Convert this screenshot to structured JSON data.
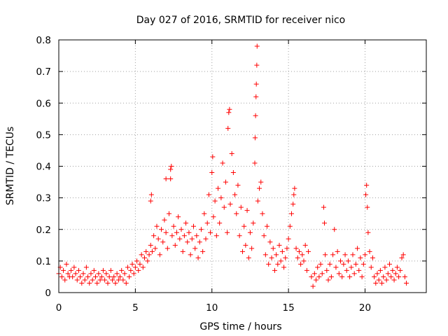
{
  "chart_data": {
    "type": "scatter",
    "title": "Day 027 of 2016, SRMTID for receiver nico",
    "xlabel": "GPS time / hours",
    "ylabel": "SRMTID / TECUs",
    "xlim": [
      0,
      24
    ],
    "ylim": [
      0,
      0.8
    ],
    "grid": true,
    "marker": "+",
    "color": "#ff0000",
    "xticks": [
      0,
      5,
      10,
      15,
      20
    ],
    "yticks": [
      0,
      0.1,
      0.2,
      0.3,
      0.4,
      0.5,
      0.6,
      0.7,
      0.8
    ],
    "xtick_labels": [
      "0",
      "5",
      "10",
      "15",
      "20"
    ],
    "ytick_labels": [
      "0",
      "0.1",
      "0.2",
      "0.3",
      "0.4",
      "0.5",
      "0.6",
      "0.7",
      "0.8"
    ],
    "series": [
      {
        "name": "SRMTID",
        "points": [
          [
            0.0,
            0.06
          ],
          [
            0.1,
            0.08
          ],
          [
            0.2,
            0.05
          ],
          [
            0.3,
            0.07
          ],
          [
            0.4,
            0.04
          ],
          [
            0.5,
            0.09
          ],
          [
            0.6,
            0.06
          ],
          [
            0.7,
            0.05
          ],
          [
            0.8,
            0.07
          ],
          [
            0.9,
            0.05
          ],
          [
            1.0,
            0.08
          ],
          [
            1.1,
            0.06
          ],
          [
            1.2,
            0.04
          ],
          [
            1.3,
            0.07
          ],
          [
            1.4,
            0.05
          ],
          [
            1.5,
            0.03
          ],
          [
            1.6,
            0.06
          ],
          [
            1.7,
            0.04
          ],
          [
            1.8,
            0.08
          ],
          [
            1.9,
            0.05
          ],
          [
            2.0,
            0.03
          ],
          [
            2.1,
            0.06
          ],
          [
            2.2,
            0.04
          ],
          [
            2.3,
            0.07
          ],
          [
            2.4,
            0.05
          ],
          [
            2.5,
            0.03
          ],
          [
            2.6,
            0.06
          ],
          [
            2.7,
            0.04
          ],
          [
            2.8,
            0.05
          ],
          [
            2.9,
            0.07
          ],
          [
            3.0,
            0.04
          ],
          [
            3.1,
            0.06
          ],
          [
            3.2,
            0.03
          ],
          [
            3.3,
            0.05
          ],
          [
            3.4,
            0.07
          ],
          [
            3.5,
            0.04
          ],
          [
            3.6,
            0.05
          ],
          [
            3.7,
            0.03
          ],
          [
            3.8,
            0.06
          ],
          [
            3.9,
            0.04
          ],
          [
            4.0,
            0.05
          ],
          [
            4.1,
            0.07
          ],
          [
            4.2,
            0.04
          ],
          [
            4.3,
            0.06
          ],
          [
            4.4,
            0.03
          ],
          [
            4.5,
            0.08
          ],
          [
            4.6,
            0.05
          ],
          [
            4.7,
            0.07
          ],
          [
            4.8,
            0.09
          ],
          [
            4.9,
            0.06
          ],
          [
            5.0,
            0.08
          ],
          [
            5.1,
            0.1
          ],
          [
            5.2,
            0.07
          ],
          [
            5.3,
            0.09
          ],
          [
            5.4,
            0.12
          ],
          [
            5.5,
            0.08
          ],
          [
            5.6,
            0.11
          ],
          [
            5.7,
            0.13
          ],
          [
            5.8,
            0.1
          ],
          [
            5.9,
            0.12
          ],
          [
            6.0,
            0.15
          ],
          [
            6.0,
            0.29
          ],
          [
            6.05,
            0.31
          ],
          [
            6.1,
            0.13
          ],
          [
            6.2,
            0.18
          ],
          [
            6.3,
            0.14
          ],
          [
            6.4,
            0.21
          ],
          [
            6.5,
            0.17
          ],
          [
            6.6,
            0.12
          ],
          [
            6.7,
            0.2
          ],
          [
            6.8,
            0.16
          ],
          [
            6.9,
            0.23
          ],
          [
            7.0,
            0.19
          ],
          [
            7.0,
            0.36
          ],
          [
            7.1,
            0.14
          ],
          [
            7.2,
            0.25
          ],
          [
            7.3,
            0.39
          ],
          [
            7.3,
            0.36
          ],
          [
            7.35,
            0.4
          ],
          [
            7.4,
            0.18
          ],
          [
            7.5,
            0.21
          ],
          [
            7.6,
            0.15
          ],
          [
            7.7,
            0.19
          ],
          [
            7.8,
            0.24
          ],
          [
            7.9,
            0.17
          ],
          [
            8.0,
            0.2
          ],
          [
            8.1,
            0.13
          ],
          [
            8.2,
            0.18
          ],
          [
            8.3,
            0.22
          ],
          [
            8.4,
            0.16
          ],
          [
            8.5,
            0.19
          ],
          [
            8.6,
            0.12
          ],
          [
            8.7,
            0.17
          ],
          [
            8.8,
            0.21
          ],
          [
            8.9,
            0.14
          ],
          [
            9.0,
            0.18
          ],
          [
            9.1,
            0.11
          ],
          [
            9.2,
            0.16
          ],
          [
            9.3,
            0.2
          ],
          [
            9.4,
            0.13
          ],
          [
            9.5,
            0.25
          ],
          [
            9.6,
            0.17
          ],
          [
            9.7,
            0.22
          ],
          [
            9.8,
            0.31
          ],
          [
            9.9,
            0.19
          ],
          [
            10.0,
            0.38
          ],
          [
            10.05,
            0.43
          ],
          [
            10.1,
            0.24
          ],
          [
            10.2,
            0.29
          ],
          [
            10.3,
            0.18
          ],
          [
            10.4,
            0.33
          ],
          [
            10.5,
            0.22
          ],
          [
            10.6,
            0.3
          ],
          [
            10.7,
            0.41
          ],
          [
            10.8,
            0.27
          ],
          [
            10.9,
            0.35
          ],
          [
            11.0,
            0.19
          ],
          [
            11.05,
            0.52
          ],
          [
            11.1,
            0.57
          ],
          [
            11.15,
            0.58
          ],
          [
            11.2,
            0.28
          ],
          [
            11.3,
            0.44
          ],
          [
            11.4,
            0.38
          ],
          [
            11.5,
            0.31
          ],
          [
            11.6,
            0.25
          ],
          [
            11.7,
            0.34
          ],
          [
            11.8,
            0.18
          ],
          [
            11.9,
            0.27
          ],
          [
            12.0,
            0.13
          ],
          [
            12.1,
            0.21
          ],
          [
            12.2,
            0.15
          ],
          [
            12.3,
            0.26
          ],
          [
            12.4,
            0.11
          ],
          [
            12.5,
            0.19
          ],
          [
            12.6,
            0.14
          ],
          [
            12.7,
            0.22
          ],
          [
            12.8,
            0.41
          ],
          [
            12.82,
            0.49
          ],
          [
            12.85,
            0.56
          ],
          [
            12.88,
            0.62
          ],
          [
            12.9,
            0.66
          ],
          [
            12.93,
            0.72
          ],
          [
            12.95,
            0.78
          ],
          [
            13.0,
            0.29
          ],
          [
            13.1,
            0.33
          ],
          [
            13.2,
            0.35
          ],
          [
            13.3,
            0.25
          ],
          [
            13.4,
            0.18
          ],
          [
            13.5,
            0.12
          ],
          [
            13.6,
            0.21
          ],
          [
            13.7,
            0.09
          ],
          [
            13.8,
            0.16
          ],
          [
            13.9,
            0.11
          ],
          [
            14.0,
            0.14
          ],
          [
            14.1,
            0.07
          ],
          [
            14.2,
            0.12
          ],
          [
            14.3,
            0.09
          ],
          [
            14.4,
            0.15
          ],
          [
            14.5,
            0.1
          ],
          [
            14.6,
            0.13
          ],
          [
            14.7,
            0.08
          ],
          [
            14.8,
            0.11
          ],
          [
            14.9,
            0.14
          ],
          [
            15.0,
            0.17
          ],
          [
            15.1,
            0.21
          ],
          [
            15.2,
            0.25
          ],
          [
            15.3,
            0.28
          ],
          [
            15.35,
            0.31
          ],
          [
            15.4,
            0.33
          ],
          [
            15.5,
            0.14
          ],
          [
            15.6,
            0.11
          ],
          [
            15.7,
            0.13
          ],
          [
            15.8,
            0.09
          ],
          [
            15.9,
            0.12
          ],
          [
            16.0,
            0.1
          ],
          [
            16.1,
            0.15
          ],
          [
            16.2,
            0.07
          ],
          [
            16.3,
            0.13
          ],
          [
            16.5,
            0.05
          ],
          [
            16.6,
            0.02
          ],
          [
            16.7,
            0.06
          ],
          [
            16.8,
            0.04
          ],
          [
            16.9,
            0.08
          ],
          [
            17.0,
            0.05
          ],
          [
            17.1,
            0.09
          ],
          [
            17.2,
            0.06
          ],
          [
            17.3,
            0.27
          ],
          [
            17.35,
            0.22
          ],
          [
            17.4,
            0.12
          ],
          [
            17.5,
            0.07
          ],
          [
            17.6,
            0.04
          ],
          [
            17.7,
            0.09
          ],
          [
            17.8,
            0.05
          ],
          [
            17.9,
            0.12
          ],
          [
            18.0,
            0.2
          ],
          [
            18.1,
            0.08
          ],
          [
            18.2,
            0.13
          ],
          [
            18.3,
            0.06
          ],
          [
            18.4,
            0.1
          ],
          [
            18.5,
            0.05
          ],
          [
            18.6,
            0.09
          ],
          [
            18.7,
            0.12
          ],
          [
            18.8,
            0.07
          ],
          [
            18.9,
            0.1
          ],
          [
            19.0,
            0.05
          ],
          [
            19.1,
            0.08
          ],
          [
            19.2,
            0.12
          ],
          [
            19.3,
            0.06
          ],
          [
            19.4,
            0.09
          ],
          [
            19.5,
            0.14
          ],
          [
            19.6,
            0.07
          ],
          [
            19.7,
            0.11
          ],
          [
            19.8,
            0.05
          ],
          [
            19.9,
            0.09
          ],
          [
            20.0,
            0.12
          ],
          [
            20.05,
            0.31
          ],
          [
            20.1,
            0.34
          ],
          [
            20.15,
            0.27
          ],
          [
            20.2,
            0.19
          ],
          [
            20.3,
            0.13
          ],
          [
            20.4,
            0.08
          ],
          [
            20.5,
            0.11
          ],
          [
            20.6,
            0.05
          ],
          [
            20.7,
            0.03
          ],
          [
            20.8,
            0.06
          ],
          [
            20.9,
            0.04
          ],
          [
            21.0,
            0.07
          ],
          [
            21.1,
            0.03
          ],
          [
            21.2,
            0.05
          ],
          [
            21.3,
            0.08
          ],
          [
            21.4,
            0.04
          ],
          [
            21.5,
            0.06
          ],
          [
            21.6,
            0.09
          ],
          [
            21.7,
            0.05
          ],
          [
            21.8,
            0.07
          ],
          [
            21.9,
            0.04
          ],
          [
            22.0,
            0.06
          ],
          [
            22.1,
            0.08
          ],
          [
            22.2,
            0.05
          ],
          [
            22.3,
            0.07
          ],
          [
            22.4,
            0.11
          ],
          [
            22.5,
            0.12
          ],
          [
            22.6,
            0.05
          ],
          [
            22.7,
            0.03
          ]
        ]
      }
    ]
  }
}
